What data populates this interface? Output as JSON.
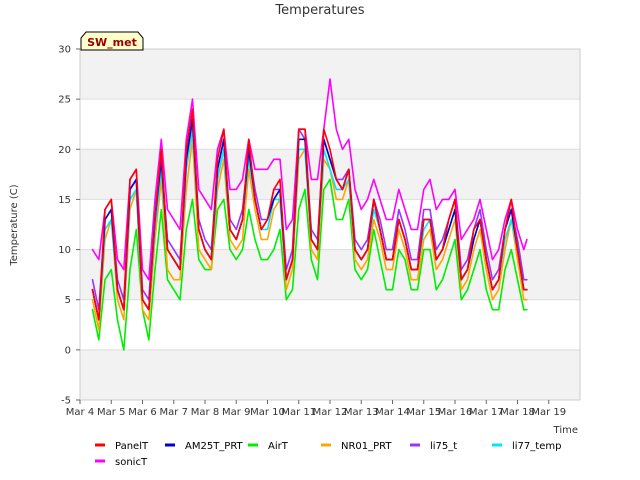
{
  "chart_data": {
    "type": "line",
    "title": "Temperatures",
    "xlabel": "Time",
    "ylabel": "Temperature (C)",
    "tag": "SW_met",
    "xlim": [
      3,
      19
    ],
    "ylim": [
      -5,
      30
    ],
    "x_ticks": [
      {
        "value": 3,
        "label": "Mar 4"
      },
      {
        "value": 4,
        "label": "Mar 5"
      },
      {
        "value": 5,
        "label": "Mar 6"
      },
      {
        "value": 6,
        "label": "Mar 7"
      },
      {
        "value": 7,
        "label": "Mar 8"
      },
      {
        "value": 8,
        "label": "Mar 9"
      },
      {
        "value": 9,
        "label": "Mar 10"
      },
      {
        "value": 10,
        "label": "Mar 11"
      },
      {
        "value": 11,
        "label": "Mar 12"
      },
      {
        "value": 12,
        "label": "Mar 13"
      },
      {
        "value": 13,
        "label": "Mar 14"
      },
      {
        "value": 14,
        "label": "Mar 15"
      },
      {
        "value": 15,
        "label": "Mar 16"
      },
      {
        "value": 16,
        "label": "Mar 17"
      },
      {
        "value": 17,
        "label": "Mar 18"
      },
      {
        "value": 18,
        "label": "Mar 19"
      }
    ],
    "y_ticks": [
      {
        "value": -5,
        "label": "-5"
      },
      {
        "value": 0,
        "label": "0"
      },
      {
        "value": 5,
        "label": "5"
      },
      {
        "value": 10,
        "label": "10"
      },
      {
        "value": 15,
        "label": "15"
      },
      {
        "value": 20,
        "label": "20"
      },
      {
        "value": 25,
        "label": "25"
      },
      {
        "value": 30,
        "label": "30"
      }
    ],
    "grid": true,
    "legend_position": "bottom",
    "series": [
      {
        "name": "PanelT",
        "color": "#ff0000",
        "x": [
          3.4,
          3.6,
          3.8,
          4.0,
          4.2,
          4.4,
          4.6,
          4.8,
          5.0,
          5.2,
          5.4,
          5.6,
          5.8,
          6.0,
          6.2,
          6.4,
          6.6,
          6.8,
          7.0,
          7.2,
          7.4,
          7.6,
          7.8,
          8.0,
          8.2,
          8.4,
          8.6,
          8.8,
          9.0,
          9.2,
          9.4,
          9.6,
          9.8,
          10.0,
          10.2,
          10.4,
          10.6,
          10.8,
          11.0,
          11.2,
          11.4,
          11.6,
          11.8,
          12.0,
          12.2,
          12.4,
          12.6,
          12.8,
          13.0,
          13.2,
          13.4,
          13.6,
          13.8,
          14.0,
          14.2,
          14.4,
          14.6,
          14.8,
          15.0,
          15.2,
          15.4,
          15.6,
          15.8,
          16.0,
          16.2,
          16.4,
          16.6,
          16.8,
          17.0,
          17.2,
          17.3
        ],
        "y": [
          6,
          3,
          14,
          15,
          6,
          4,
          17,
          18,
          5,
          4,
          13,
          20,
          10,
          9,
          8,
          20,
          24,
          12,
          10,
          9,
          19,
          22,
          12,
          11,
          13,
          21,
          15,
          12,
          13,
          16,
          17,
          7,
          9,
          22,
          22,
          11,
          10,
          22,
          20,
          17,
          16,
          18,
          10,
          9,
          10,
          15,
          12,
          9,
          9,
          13,
          11,
          8,
          8,
          13,
          13,
          9,
          10,
          13,
          15,
          7,
          8,
          12,
          13,
          9,
          6,
          7,
          12,
          15,
          10,
          6,
          6
        ]
      },
      {
        "name": "AM25T_PRT",
        "color": "#0000cc",
        "x": [
          3.4,
          3.6,
          3.8,
          4.0,
          4.2,
          4.4,
          4.6,
          4.8,
          5.0,
          5.2,
          5.4,
          5.6,
          5.8,
          6.0,
          6.2,
          6.4,
          6.6,
          6.8,
          7.0,
          7.2,
          7.4,
          7.6,
          7.8,
          8.0,
          8.2,
          8.4,
          8.6,
          8.8,
          9.0,
          9.2,
          9.4,
          9.6,
          9.8,
          10.0,
          10.2,
          10.4,
          10.6,
          10.8,
          11.0,
          11.2,
          11.4,
          11.6,
          11.8,
          12.0,
          12.2,
          12.4,
          12.6,
          12.8,
          13.0,
          13.2,
          13.4,
          13.6,
          13.8,
          14.0,
          14.2,
          14.4,
          14.6,
          14.8,
          15.0,
          15.2,
          15.4,
          15.6,
          15.8,
          16.0,
          16.2,
          16.4,
          16.6,
          16.8,
          17.0,
          17.2,
          17.3
        ],
        "y": [
          6,
          3,
          13,
          14,
          6,
          4,
          16,
          17,
          5,
          4,
          13,
          19,
          10,
          9,
          8,
          19,
          23,
          12,
          10,
          9,
          18,
          21,
          12,
          11,
          13,
          20,
          15,
          12,
          13,
          15,
          16,
          7,
          9,
          21,
          21,
          11,
          10,
          21,
          19,
          17,
          16,
          18,
          10,
          9,
          10,
          15,
          12,
          9,
          9,
          13,
          11,
          8,
          8,
          13,
          13,
          9,
          10,
          12,
          14,
          7,
          8,
          11,
          13,
          9,
          6,
          7,
          12,
          14,
          10,
          6,
          6
        ]
      },
      {
        "name": "AirT",
        "color": "#00ee00",
        "x": [
          3.4,
          3.6,
          3.8,
          4.0,
          4.2,
          4.4,
          4.6,
          4.8,
          5.0,
          5.2,
          5.4,
          5.6,
          5.8,
          6.0,
          6.2,
          6.4,
          6.6,
          6.8,
          7.0,
          7.2,
          7.4,
          7.6,
          7.8,
          8.0,
          8.2,
          8.4,
          8.6,
          8.8,
          9.0,
          9.2,
          9.4,
          9.6,
          9.8,
          10.0,
          10.2,
          10.4,
          10.6,
          10.8,
          11.0,
          11.2,
          11.4,
          11.6,
          11.8,
          12.0,
          12.2,
          12.4,
          12.6,
          12.8,
          13.0,
          13.2,
          13.4,
          13.6,
          13.8,
          14.0,
          14.2,
          14.4,
          14.6,
          14.8,
          15.0,
          15.2,
          15.4,
          15.6,
          15.8,
          16.0,
          16.2,
          16.4,
          16.6,
          16.8,
          17.0,
          17.2,
          17.3
        ],
        "y": [
          4,
          1,
          7,
          8,
          3,
          0,
          8,
          12,
          4,
          1,
          8,
          14,
          7,
          6,
          5,
          12,
          15,
          9,
          8,
          8,
          14,
          15,
          10,
          9,
          10,
          14,
          11,
          9,
          9,
          10,
          12,
          5,
          6,
          14,
          16,
          9,
          7,
          16,
          17,
          13,
          13,
          15,
          8,
          7,
          8,
          12,
          9,
          6,
          6,
          10,
          9,
          6,
          6,
          10,
          10,
          6,
          7,
          9,
          11,
          5,
          6,
          8,
          10,
          6,
          4,
          4,
          8,
          10,
          7,
          4,
          4
        ]
      },
      {
        "name": "NR01_PRT",
        "color": "#ffa500",
        "x": [
          3.4,
          3.6,
          3.8,
          4.0,
          4.2,
          4.4,
          4.6,
          4.8,
          5.0,
          5.2,
          5.4,
          5.6,
          5.8,
          6.0,
          6.2,
          6.4,
          6.6,
          6.8,
          7.0,
          7.2,
          7.4,
          7.6,
          7.8,
          8.0,
          8.2,
          8.4,
          8.6,
          8.8,
          9.0,
          9.2,
          9.4,
          9.6,
          9.8,
          10.0,
          10.2,
          10.4,
          10.6,
          10.8,
          11.0,
          11.2,
          11.4,
          11.6,
          11.8,
          12.0,
          12.2,
          12.4,
          12.6,
          12.8,
          13.0,
          13.2,
          13.4,
          13.6,
          13.8,
          14.0,
          14.2,
          14.4,
          14.6,
          14.8,
          15.0,
          15.2,
          15.4,
          15.6,
          15.8,
          16.0,
          16.2,
          16.4,
          16.6,
          16.8,
          17.0,
          17.2,
          17.3
        ],
        "y": [
          5,
          2,
          11,
          13,
          5,
          3,
          14,
          16,
          4,
          3,
          11,
          17,
          8,
          7,
          7,
          16,
          21,
          10,
          9,
          8,
          16,
          19,
          11,
          10,
          11,
          18,
          14,
          11,
          11,
          14,
          15,
          6,
          8,
          19,
          20,
          10,
          9,
          19,
          18,
          15,
          15,
          17,
          9,
          8,
          9,
          13,
          11,
          8,
          8,
          12,
          10,
          7,
          7,
          11,
          12,
          8,
          9,
          11,
          13,
          6,
          7,
          10,
          12,
          8,
          5,
          6,
          10,
          13,
          9,
          5,
          5
        ]
      },
      {
        "name": "li75_t",
        "color": "#9933ff",
        "x": [
          3.4,
          3.6,
          3.8,
          4.0,
          4.2,
          4.4,
          4.6,
          4.8,
          5.0,
          5.2,
          5.4,
          5.6,
          5.8,
          6.0,
          6.2,
          6.4,
          6.6,
          6.8,
          7.0,
          7.2,
          7.4,
          7.6,
          7.8,
          8.0,
          8.2,
          8.4,
          8.6,
          8.8,
          9.0,
          9.2,
          9.4,
          9.6,
          9.8,
          10.0,
          10.2,
          10.4,
          10.6,
          10.8,
          11.0,
          11.2,
          11.4,
          11.6,
          11.8,
          12.0,
          12.2,
          12.4,
          12.6,
          12.8,
          13.0,
          13.2,
          13.4,
          13.6,
          13.8,
          14.0,
          14.2,
          14.4,
          14.6,
          14.8,
          15.0,
          15.2,
          15.4,
          15.6,
          15.8,
          16.0,
          16.2,
          16.4,
          16.6,
          16.8,
          17.0,
          17.2,
          17.3
        ],
        "y": [
          7,
          4,
          13,
          14,
          7,
          5,
          16,
          17,
          6,
          5,
          14,
          19,
          11,
          10,
          9,
          19,
          23,
          13,
          11,
          10,
          18,
          21,
          13,
          12,
          14,
          20,
          16,
          13,
          13,
          16,
          16,
          8,
          10,
          22,
          21,
          12,
          11,
          21,
          19,
          17,
          17,
          18,
          11,
          10,
          11,
          15,
          13,
          10,
          10,
          14,
          12,
          9,
          9,
          14,
          14,
          10,
          11,
          13,
          15,
          8,
          9,
          12,
          14,
          10,
          7,
          8,
          12,
          14,
          11,
          7,
          7
        ]
      },
      {
        "name": "li77_temp",
        "color": "#00e5ff",
        "x": [
          3.4,
          3.6,
          3.8,
          4.0,
          4.2,
          4.4,
          4.6,
          4.8,
          5.0,
          5.2,
          5.4,
          5.6,
          5.8,
          6.0,
          6.2,
          6.4,
          6.6,
          6.8,
          7.0,
          7.2,
          7.4,
          7.6,
          7.8,
          8.0,
          8.2,
          8.4,
          8.6,
          8.8,
          9.0,
          9.2,
          9.4,
          9.6,
          9.8,
          10.0,
          10.2,
          10.4,
          10.6,
          10.8,
          11.0,
          11.2,
          11.4,
          11.6,
          11.8,
          12.0,
          12.2,
          12.4,
          12.6,
          12.8,
          13.0,
          13.2,
          13.4,
          13.6,
          13.8,
          14.0,
          14.2,
          14.4,
          14.6,
          14.8,
          15.0,
          15.2,
          15.4,
          15.6,
          15.8,
          16.0,
          16.2,
          16.4,
          16.6,
          16.8,
          17.0,
          17.2,
          17.3
        ],
        "y": [
          6,
          3,
          12,
          13,
          6,
          4,
          15,
          16,
          5,
          4,
          12,
          18,
          10,
          9,
          8,
          18,
          22,
          12,
          10,
          9,
          17,
          20,
          12,
          11,
          13,
          19,
          15,
          12,
          12,
          15,
          15,
          7,
          9,
          20,
          20,
          11,
          10,
          20,
          18,
          16,
          16,
          17,
          10,
          9,
          10,
          14,
          12,
          9,
          9,
          13,
          11,
          8,
          8,
          12,
          13,
          9,
          10,
          12,
          14,
          7,
          8,
          11,
          13,
          9,
          6,
          7,
          11,
          13,
          10,
          6,
          6
        ]
      },
      {
        "name": "sonicT",
        "color": "#ff00ff",
        "x": [
          3.4,
          3.6,
          3.8,
          4.0,
          4.2,
          4.4,
          4.6,
          4.8,
          5.0,
          5.2,
          5.4,
          5.6,
          5.8,
          6.0,
          6.2,
          6.4,
          6.6,
          6.8,
          7.0,
          7.2,
          7.4,
          7.6,
          7.8,
          8.0,
          8.2,
          8.4,
          8.6,
          8.8,
          9.0,
          9.2,
          9.4,
          9.6,
          9.8,
          10.0,
          10.2,
          10.4,
          10.6,
          10.8,
          11.0,
          11.2,
          11.4,
          11.6,
          11.8,
          12.0,
          12.2,
          12.4,
          12.6,
          12.8,
          13.0,
          13.2,
          13.4,
          13.6,
          13.8,
          14.0,
          14.2,
          14.4,
          14.6,
          14.8,
          15.0,
          15.2,
          15.4,
          15.6,
          15.8,
          16.0,
          16.2,
          16.4,
          16.6,
          16.8,
          17.0,
          17.2,
          17.3
        ],
        "y": [
          10,
          9,
          14,
          15,
          9,
          8,
          17,
          18,
          8,
          7,
          15,
          21,
          14,
          13,
          12,
          21,
          25,
          16,
          15,
          14,
          20,
          22,
          16,
          16,
          17,
          21,
          18,
          18,
          18,
          19,
          19,
          12,
          13,
          22,
          22,
          17,
          17,
          22,
          27,
          22,
          20,
          21,
          16,
          14,
          15,
          17,
          15,
          13,
          13,
          16,
          14,
          12,
          12,
          16,
          17,
          14,
          15,
          15,
          16,
          11,
          12,
          13,
          15,
          12,
          9,
          10,
          13,
          15,
          12,
          10,
          11
        ]
      }
    ]
  }
}
